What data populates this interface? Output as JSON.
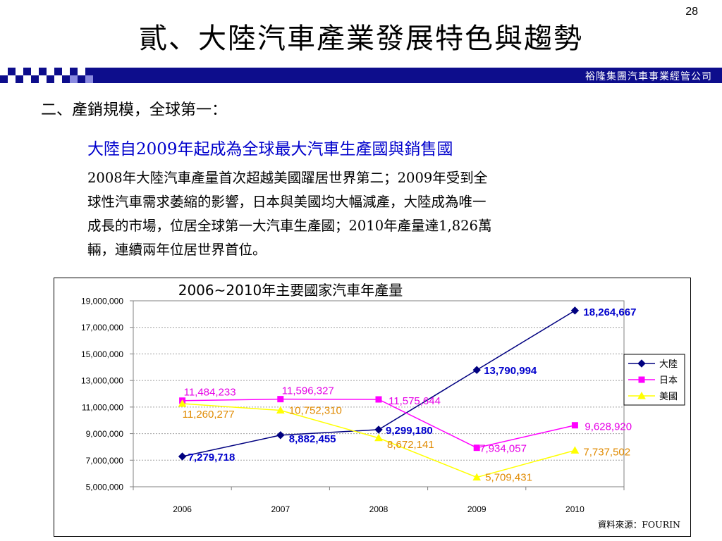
{
  "slide": {
    "page_number": "28",
    "title": "貳、大陸汽車產業發展特色與趨勢",
    "company": "裕隆集團汽車事業經管公司",
    "section_heading": "二、產銷規模，全球第一：",
    "highlight": "大陸自2009年起成為全球最大汽車生產國與銷售國",
    "body_lines": [
      "2008年大陸汽車產量首次超越美國躍居世界第二；2009年受到全",
      "球性汽車需求萎縮的影響，日本與美國均大幅減產，大陸成為唯一",
      "成長的市場，位居全球第一大汽車生產國；2010年產量達1,826萬",
      "輛，連續兩年位居世界首位。"
    ],
    "source": "資料來源：FOURIN"
  },
  "colors": {
    "header_bar": "#0d0d8c",
    "highlight": "#0000cc"
  },
  "chart_data": {
    "type": "line",
    "title": "2006~2010年主要國家汽車年產量",
    "categories": [
      "2006",
      "2007",
      "2008",
      "2009",
      "2010"
    ],
    "ylim": [
      5000000,
      19000000
    ],
    "yticks": [
      5000000,
      7000000,
      9000000,
      11000000,
      13000000,
      15000000,
      17000000,
      19000000
    ],
    "ytick_labels": [
      "5,000,000",
      "7,000,000",
      "9,000,000",
      "11,000,000",
      "13,000,000",
      "15,000,000",
      "17,000,000",
      "19,000,000"
    ],
    "grid": true,
    "legend_position": "right",
    "series": [
      {
        "name": "大陸",
        "color": "#000080",
        "label_color": "#0000cc",
        "marker": "diamond",
        "values": [
          7279718,
          8882455,
          9299180,
          13790994,
          18264667
        ],
        "labels": [
          "7,279,718",
          "8,882,455",
          "9,299,180",
          "13,790,994",
          "18,264,667"
        ]
      },
      {
        "name": "日本",
        "color": "#ff00ff",
        "label_color": "#e600e6",
        "marker": "square",
        "values": [
          11484233,
          11596327,
          11575644,
          7934057,
          9628920
        ],
        "labels": [
          "11,484,233",
          "11,596,327",
          "11,575,644",
          "7,934,057",
          "9,628,920"
        ]
      },
      {
        "name": "美國",
        "color": "#ffff00",
        "label_color": "#e08a00",
        "marker": "triangle",
        "values": [
          11260277,
          10752310,
          8672141,
          5709431,
          7737502
        ],
        "labels": [
          "11,260,277",
          "10,752,310",
          "8,672,141",
          "5,709,431",
          "7,737,502"
        ]
      }
    ]
  }
}
